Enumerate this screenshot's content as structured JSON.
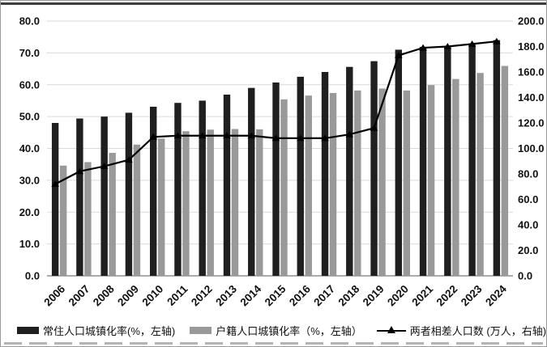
{
  "figure": {
    "background": "#ffffff",
    "border_color": "#9a9a9a",
    "top_rule_color": "#3d3d3d",
    "gridline_color": "#d9d9d9",
    "baseline_color": "#8f8f8f"
  },
  "chart_data": {
    "type": "bar",
    "subtype": "combo-bar-line-dual-axis",
    "title": "",
    "xlabel": "",
    "ylabel_left": "",
    "ylabel_right": "",
    "grid": true,
    "legend_position": "bottom",
    "categories": [
      "2006",
      "2007",
      "2008",
      "2009",
      "2010",
      "2011",
      "2012",
      "2013",
      "2014",
      "2015",
      "2016",
      "2017",
      "2018",
      "2019",
      "2020",
      "2021",
      "2022",
      "2023",
      "2024"
    ],
    "series": [
      {
        "name": "常住人口城镇化率(%，左轴)",
        "type": "bar",
        "axis": "left",
        "color": "#1f1f1f",
        "values": [
          48.0,
          49.4,
          50.0,
          51.2,
          53.1,
          54.3,
          55.0,
          56.9,
          59.0,
          60.7,
          62.5,
          64.0,
          65.6,
          67.4,
          71.0,
          71.9,
          72.1,
          72.8,
          74.0
        ]
      },
      {
        "name": "户籍人口城镇化率（%，左轴）",
        "type": "bar",
        "axis": "left",
        "color": "#999999",
        "values": [
          34.6,
          35.7,
          38.6,
          41.2,
          43.1,
          45.4,
          45.9,
          46.1,
          46.0,
          55.4,
          56.6,
          57.4,
          58.2,
          58.8,
          58.2,
          59.9,
          61.8,
          63.7,
          65.9
        ]
      },
      {
        "name": "两者相差人口数 (万人，右轴)",
        "type": "line",
        "axis": "right",
        "color": "#000000",
        "marker": "triangle",
        "values": [
          72,
          82,
          86,
          91,
          109,
          110,
          110,
          110,
          110,
          108,
          108,
          108,
          111,
          116,
          173,
          179,
          180,
          182,
          184
        ]
      }
    ],
    "left_axis": {
      "min": 0,
      "max": 80,
      "step": 10,
      "ticks": [
        "0.0",
        "10.0",
        "20.0",
        "30.0",
        "40.0",
        "50.0",
        "60.0",
        "70.0",
        "80.0"
      ]
    },
    "right_axis": {
      "min": 0,
      "max": 200,
      "step": 20,
      "ticks": [
        "0.0",
        "20.0",
        "40.0",
        "60.0",
        "80.0",
        "100.0",
        "120.0",
        "140.0",
        "160.0",
        "180.0",
        "200.0"
      ]
    }
  }
}
